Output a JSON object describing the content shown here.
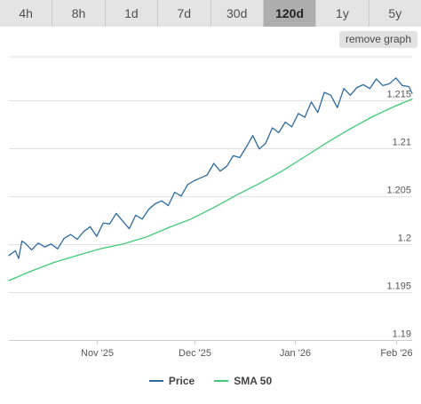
{
  "timeframe_tabs": [
    {
      "label": "4h",
      "active": false
    },
    {
      "label": "8h",
      "active": false
    },
    {
      "label": "1d",
      "active": false
    },
    {
      "label": "7d",
      "active": false
    },
    {
      "label": "30d",
      "active": false
    },
    {
      "label": "120d",
      "active": true
    },
    {
      "label": "1y",
      "active": false
    },
    {
      "label": "5y",
      "active": false
    }
  ],
  "remove_graph_label": "remove graph",
  "legend": {
    "price_label": "Price",
    "sma_label": "SMA 50"
  },
  "colors": {
    "price": "#2d6a9f",
    "sma": "#3fc979",
    "grid": "#e2e2e2",
    "tick_text": "#555555",
    "active_tab": "#adadad"
  },
  "chart_data": {
    "type": "line",
    "title": "",
    "xlabel": "",
    "ylabel": "",
    "xlim": [
      "2025-10-05",
      "2026-02-06"
    ],
    "ylim": [
      1.19,
      1.2195
    ],
    "y_ticks": [
      1.19,
      1.195,
      1.2,
      1.205,
      1.21,
      1.215
    ],
    "y_tick_labels": [
      "1.19",
      "1.195",
      "1.2",
      "1.205",
      "1.21",
      "1.215"
    ],
    "x_ticks": [
      {
        "date": "2025-11-01",
        "label": "Nov '25"
      },
      {
        "date": "2025-12-01",
        "label": "Dec '25"
      },
      {
        "date": "2026-01-01",
        "label": "Jan '26"
      },
      {
        "date": "2026-02-01",
        "label": "Feb '26"
      }
    ],
    "grid": true,
    "legend_position": "bottom",
    "series": [
      {
        "name": "Price",
        "x": [
          "2025-10-05",
          "2025-10-07",
          "2025-10-08",
          "2025-10-09",
          "2025-10-10",
          "2025-10-12",
          "2025-10-14",
          "2025-10-16",
          "2025-10-18",
          "2025-10-20",
          "2025-10-22",
          "2025-10-24",
          "2025-10-26",
          "2025-10-28",
          "2025-10-30",
          "2025-11-01",
          "2025-11-03",
          "2025-11-05",
          "2025-11-07",
          "2025-11-09",
          "2025-11-11",
          "2025-11-13",
          "2025-11-15",
          "2025-11-17",
          "2025-11-19",
          "2025-11-21",
          "2025-11-23",
          "2025-11-25",
          "2025-11-27",
          "2025-11-29",
          "2025-12-01",
          "2025-12-03",
          "2025-12-05",
          "2025-12-07",
          "2025-12-09",
          "2025-12-11",
          "2025-12-13",
          "2025-12-15",
          "2025-12-17",
          "2025-12-19",
          "2025-12-21",
          "2025-12-23",
          "2025-12-25",
          "2025-12-27",
          "2025-12-29",
          "2025-12-31",
          "2026-01-02",
          "2026-01-04",
          "2026-01-06",
          "2026-01-08",
          "2026-01-10",
          "2026-01-12",
          "2026-01-14",
          "2026-01-16",
          "2026-01-18",
          "2026-01-20",
          "2026-01-22",
          "2026-01-24",
          "2026-01-26",
          "2026-01-28",
          "2026-01-30",
          "2026-02-01",
          "2026-02-03",
          "2026-02-05",
          "2026-02-06"
        ],
        "values": [
          1.1988,
          1.1993,
          1.1985,
          1.2003,
          1.2001,
          1.1994,
          1.2001,
          1.1997,
          1.2,
          1.1995,
          1.2006,
          1.201,
          1.2005,
          1.2013,
          1.2018,
          1.2008,
          1.2022,
          1.2021,
          1.2032,
          1.2024,
          1.2016,
          1.203,
          1.2026,
          1.2036,
          1.2042,
          1.2045,
          1.204,
          1.2054,
          1.205,
          1.2062,
          1.2066,
          1.2069,
          1.2072,
          1.2084,
          1.2076,
          1.2081,
          1.2092,
          1.209,
          1.2101,
          1.2113,
          1.2099,
          1.2105,
          1.2121,
          1.2116,
          1.2127,
          1.2122,
          1.2136,
          1.2132,
          1.2148,
          1.2137,
          1.2158,
          1.2155,
          1.2142,
          1.2162,
          1.2155,
          1.2163,
          1.2166,
          1.2162,
          1.2172,
          1.2165,
          1.2167,
          1.2173,
          1.2165,
          1.2164,
          1.2157
        ]
      },
      {
        "name": "SMA 50",
        "x": [
          "2025-10-05",
          "2025-10-12",
          "2025-10-19",
          "2025-10-26",
          "2025-11-02",
          "2025-11-09",
          "2025-11-16",
          "2025-11-23",
          "2025-11-30",
          "2025-12-07",
          "2025-12-14",
          "2025-12-21",
          "2025-12-28",
          "2026-01-04",
          "2026-01-11",
          "2026-01-18",
          "2026-01-25",
          "2026-02-01",
          "2026-02-06"
        ],
        "values": [
          1.1962,
          1.1972,
          1.1981,
          1.1988,
          1.1995,
          1.2,
          1.2007,
          1.2017,
          1.2026,
          1.2038,
          1.2051,
          1.2063,
          1.2076,
          1.2091,
          1.2106,
          1.212,
          1.2133,
          1.2144,
          1.2151
        ]
      }
    ]
  }
}
